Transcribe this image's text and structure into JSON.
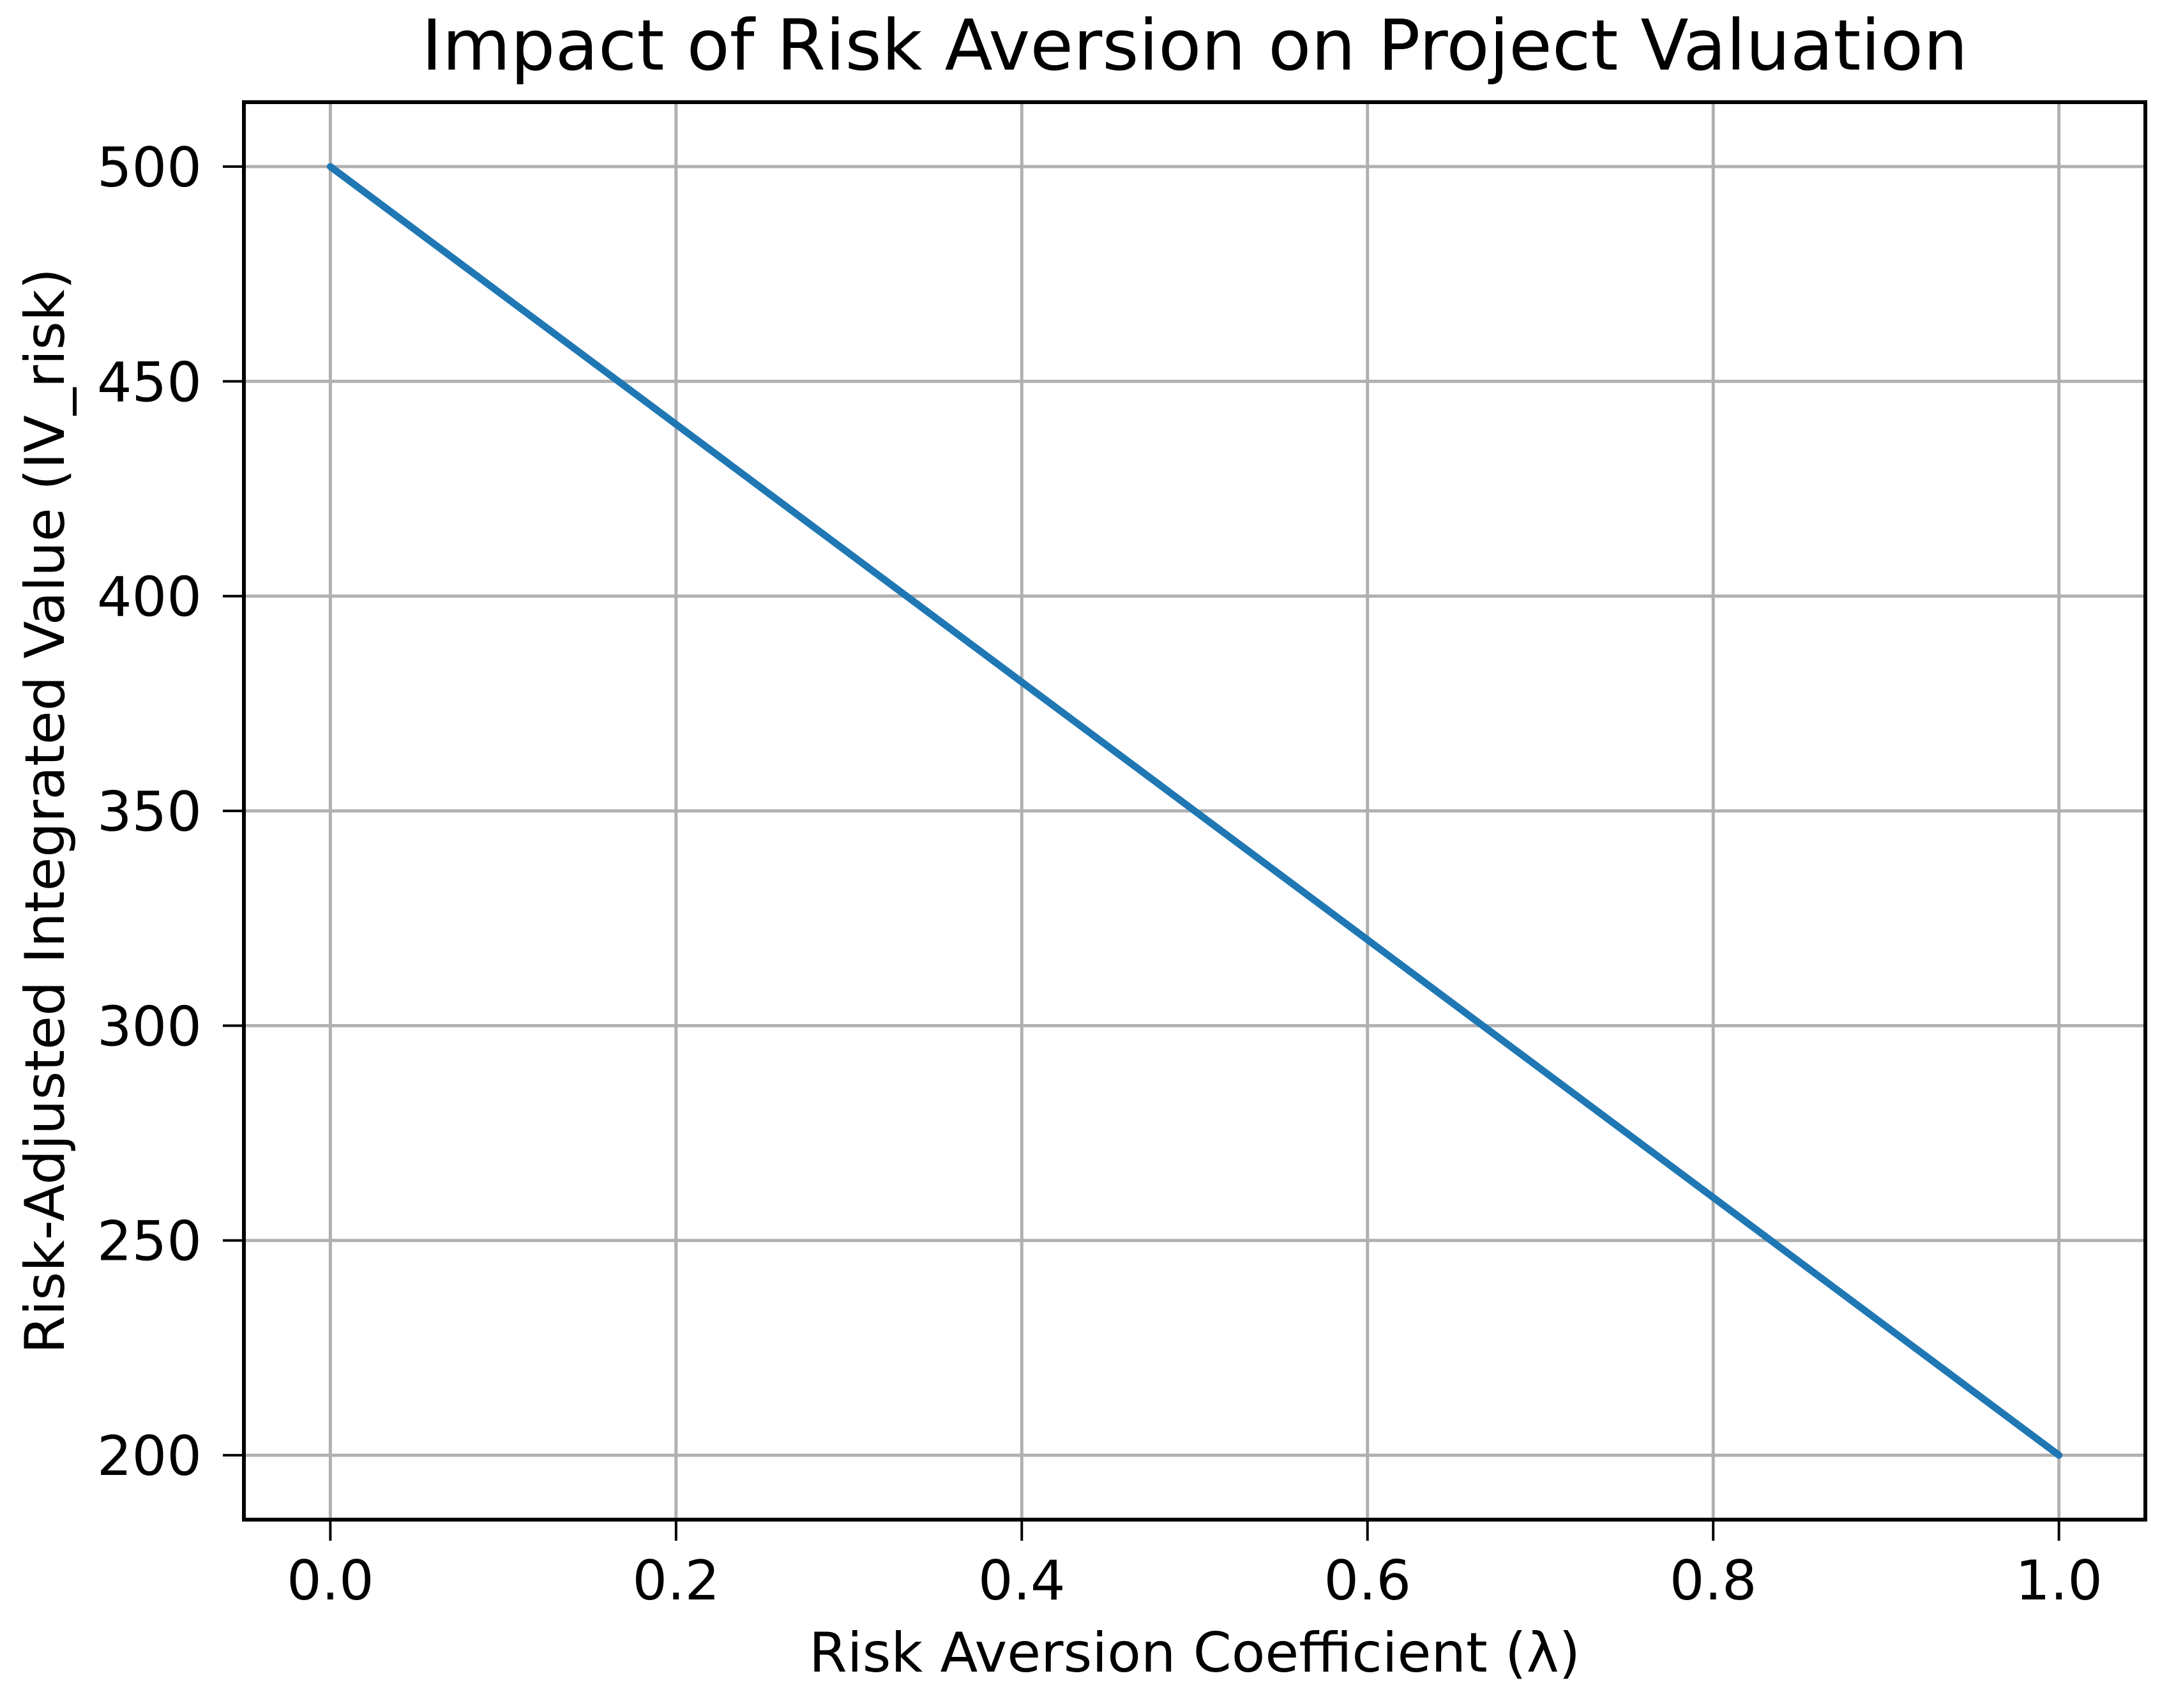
{
  "figure": {
    "background_color": "#ffffff",
    "text_color": "#000000"
  },
  "chart_data": {
    "type": "line",
    "title": "Impact of Risk Aversion on Project Valuation",
    "xlabel": "Risk Aversion Coefficient (λ)",
    "ylabel": "Risk-Adjusted Integrated Value (IV_risk)",
    "xlim": [
      -0.05,
      1.05
    ],
    "ylim": [
      185,
      515
    ],
    "x_ticks": [
      0.0,
      0.2,
      0.4,
      0.6,
      0.8,
      1.0
    ],
    "x_tick_labels": [
      "0.0",
      "0.2",
      "0.4",
      "0.6",
      "0.8",
      "1.0"
    ],
    "y_ticks": [
      200,
      250,
      300,
      350,
      400,
      450,
      500
    ],
    "y_tick_labels": [
      "200",
      "250",
      "300",
      "350",
      "400",
      "450",
      "500"
    ],
    "grid": true,
    "legend_position": "none",
    "grid_color": "#b0b0b0",
    "spine_color": "#000000",
    "tick_color": "#000000",
    "series": [
      {
        "name": "IV_risk",
        "color": "#1f77b4",
        "line_width": 11,
        "x": [
          0.0,
          0.1,
          0.2,
          0.3,
          0.4,
          0.5,
          0.6,
          0.7,
          0.8,
          0.9,
          1.0
        ],
        "y": [
          500,
          470,
          440,
          410,
          380,
          350,
          320,
          290,
          260,
          230,
          200
        ]
      }
    ]
  }
}
